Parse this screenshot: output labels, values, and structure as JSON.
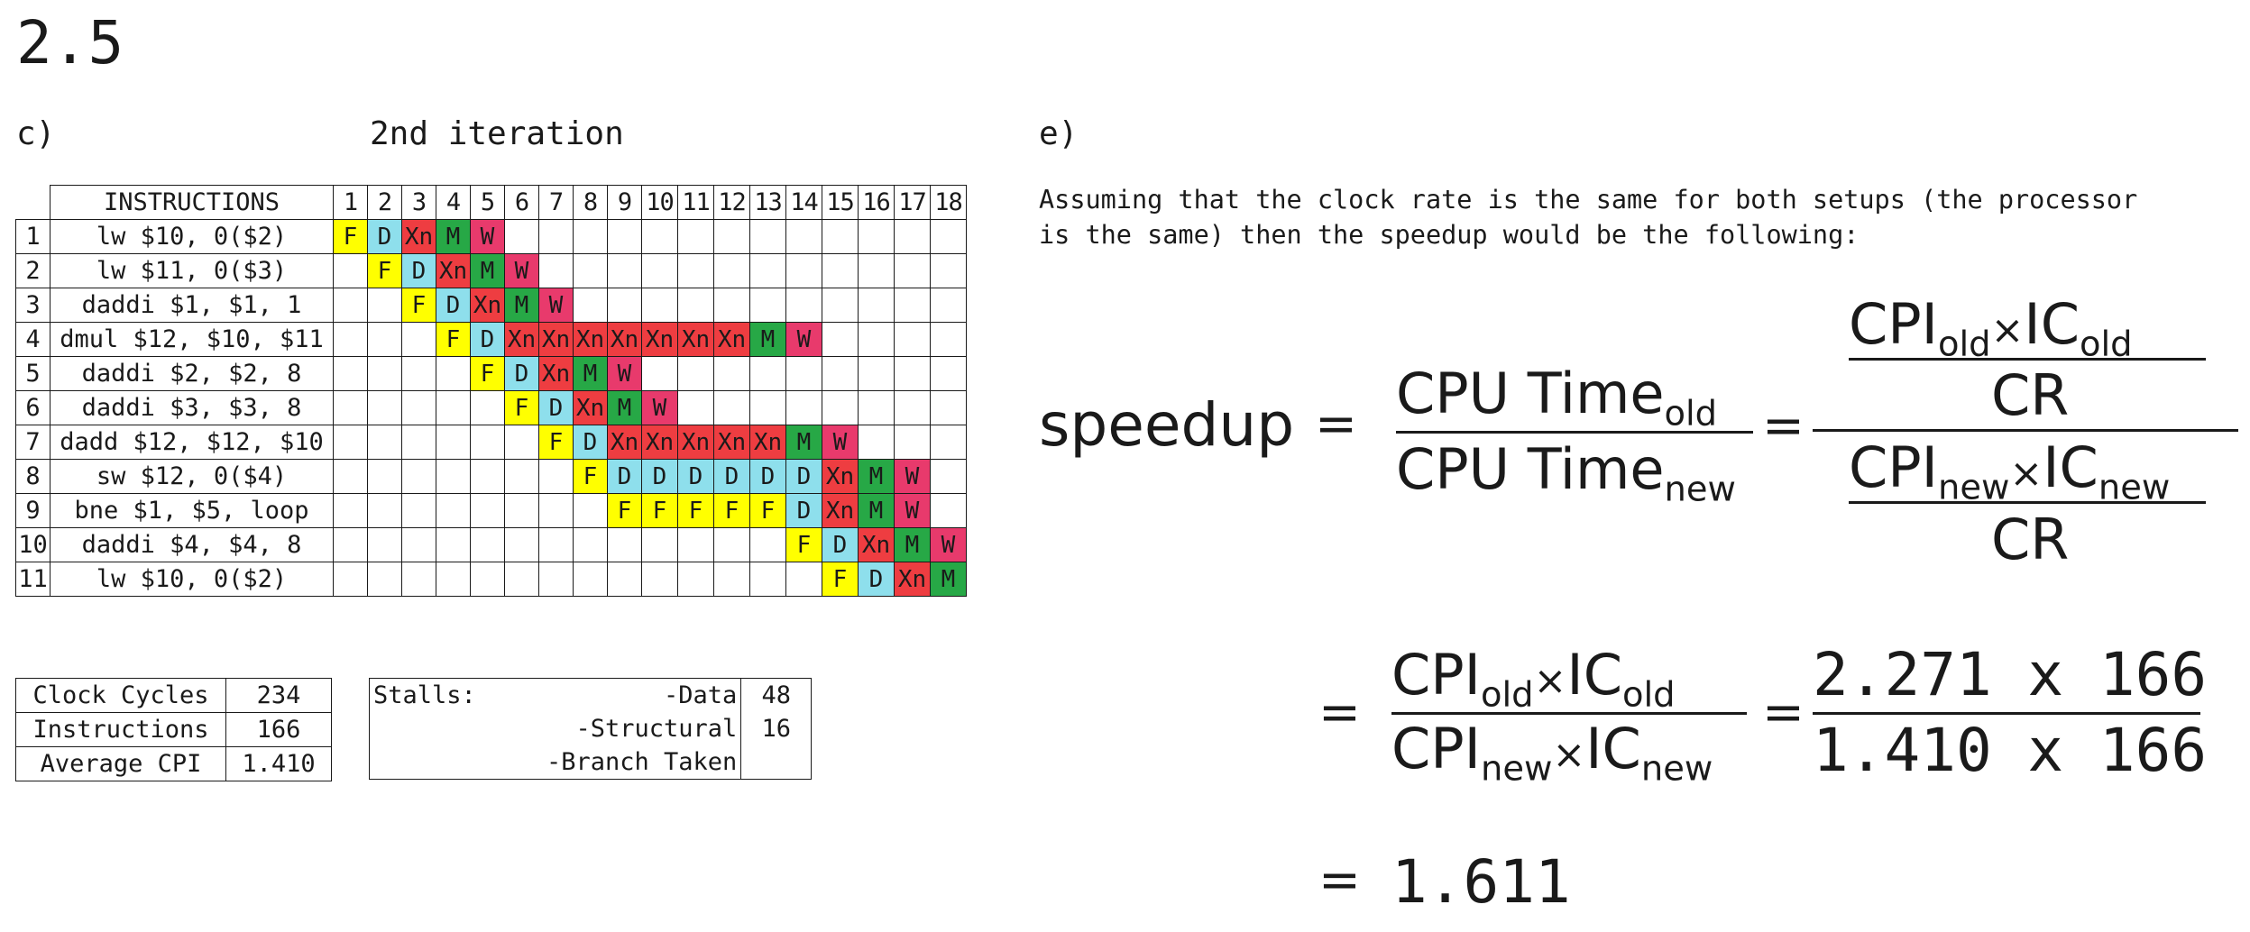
{
  "heading": "2.5",
  "left": {
    "part_label": "c)",
    "iteration_title": "2nd iteration",
    "pipeline": {
      "instructions_header": "INSTRUCTIONS",
      "cycles": [
        "1",
        "2",
        "3",
        "4",
        "5",
        "6",
        "7",
        "8",
        "9",
        "10",
        "11",
        "12",
        "13",
        "14",
        "15",
        "16",
        "17",
        "18"
      ],
      "rows": [
        {
          "num": "1",
          "instr": "lw $10, 0($2)",
          "start": 1,
          "stages": [
            "F",
            "D",
            "Xn",
            "M",
            "W"
          ]
        },
        {
          "num": "2",
          "instr": "lw $11, 0($3)",
          "start": 2,
          "stages": [
            "F",
            "D",
            "Xn",
            "M",
            "W"
          ]
        },
        {
          "num": "3",
          "instr": "daddi $1, $1, 1",
          "start": 3,
          "stages": [
            "F",
            "D",
            "Xn",
            "M",
            "W"
          ]
        },
        {
          "num": "4",
          "instr": "dmul $12, $10, $11",
          "start": 4,
          "stages": [
            "F",
            "D",
            "Xn",
            "Xn",
            "Xn",
            "Xn",
            "Xn",
            "Xn",
            "Xn",
            "M",
            "W"
          ]
        },
        {
          "num": "5",
          "instr": "daddi $2, $2, 8",
          "start": 5,
          "stages": [
            "F",
            "D",
            "Xn",
            "M",
            "W"
          ]
        },
        {
          "num": "6",
          "instr": "daddi $3, $3, 8",
          "start": 6,
          "stages": [
            "F",
            "D",
            "Xn",
            "M",
            "W"
          ]
        },
        {
          "num": "7",
          "instr": "dadd $12, $12, $10",
          "start": 7,
          "stages": [
            "F",
            "D",
            "Xn",
            "Xn",
            "Xn",
            "Xn",
            "Xn",
            "M",
            "W"
          ]
        },
        {
          "num": "8",
          "instr": "sw $12, 0($4)",
          "start": 8,
          "stages": [
            "F",
            "D",
            "D",
            "D",
            "D",
            "D",
            "D",
            "Xn",
            "M",
            "W"
          ]
        },
        {
          "num": "9",
          "instr": "bne $1, $5, loop",
          "start": 9,
          "stages": [
            "F",
            "F",
            "F",
            "F",
            "F",
            "D",
            "Xn",
            "M",
            "W"
          ]
        },
        {
          "num": "10",
          "instr": "daddi $4, $4, 8",
          "start": 14,
          "stages": [
            "F",
            "D",
            "Xn",
            "M",
            "W"
          ]
        },
        {
          "num": "11",
          "instr": "lw $10, 0($2)",
          "start": 15,
          "stages": [
            "F",
            "D",
            "Xn",
            "M"
          ]
        }
      ]
    },
    "summary": [
      {
        "label": "Clock Cycles",
        "value": "234"
      },
      {
        "label": "Instructions",
        "value": "166"
      },
      {
        "label": "Average CPI",
        "value": "1.410"
      }
    ],
    "stalls": {
      "title": "Stalls:",
      "rows": [
        {
          "label": "-Data",
          "value": "48"
        },
        {
          "label": "-Structural",
          "value": "16"
        },
        {
          "label": "-Branch Taken",
          "value": ""
        }
      ]
    }
  },
  "right": {
    "part_label": "e)",
    "paragraph_line1": "Assuming that the clock rate is the same for both setups (the processor",
    "paragraph_line2": "is the same) then the speedup would be the following:",
    "eq": {
      "speedup": "speedup",
      "equals": "=",
      "cpu_time": "CPU Time",
      "sub_old": "old",
      "sub_new": "new",
      "cpi": "CPI",
      "ic": "IC",
      "times": "×",
      "cr": "CR",
      "num_value": "2.271 x 166",
      "den_value": "1.410 x 166",
      "result": "1.611"
    }
  },
  "colors": {
    "F": "#ffff00",
    "D": "#8edfec",
    "Xn": "#ee3d41",
    "M": "#27a846",
    "W": "#e83a6c"
  }
}
